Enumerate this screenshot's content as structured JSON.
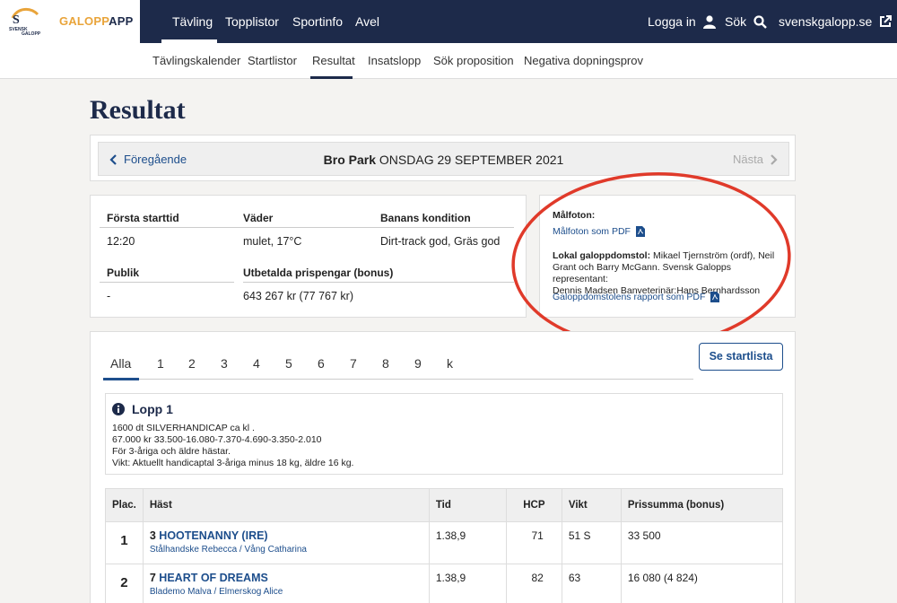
{
  "brand": {
    "prefix": "GALOPP",
    "suffix": "APP",
    "mark_text": "SVENSK GALOPP",
    "accent": "#e9a43a",
    "navy": "#1d2a4a"
  },
  "topnav": {
    "items": [
      "Tävling",
      "Topplistor",
      "Sportinfo",
      "Avel"
    ],
    "login": "Logga in",
    "search": "Sök",
    "external": "svenskgalopp.se"
  },
  "subnav": {
    "items": [
      "Tävlingskalender",
      "Startlistor",
      "Resultat",
      "Insatslopp",
      "Sök proposition",
      "Negativa dopningsprov"
    ]
  },
  "page": {
    "title": "Resultat"
  },
  "datenav": {
    "prev": "Föregående",
    "next": "Nästa",
    "track": "Bro Park",
    "date": "ONSDAG 29 SEPTEMBER 2021"
  },
  "info": {
    "first_start_label": "Första starttid",
    "first_start": "12:20",
    "weather_label": "Väder",
    "weather": "mulet, 17°C",
    "track_cond_label": "Banans kondition",
    "track_cond": "Dirt-track god, Gräs god",
    "audience_label": "Publik",
    "audience": "-",
    "prize_label": "Utbetalda prispengar (bonus)",
    "prize": "643 267 kr (77 767 kr)"
  },
  "side": {
    "photo_label": "Målfoton:",
    "photo_link": "Målfoton som PDF",
    "stewards_label": "Lokal galoppdomstol:",
    "stewards_lines": [
      "Mikael Tjernström (ordf), Neil",
      "Grant och Barry McGann. Svensk Galopps representant:",
      "Dennis Madsen Banveterinär:Hans Bernhardsson"
    ],
    "report_link": "Galoppdomstolens rapport som PDF"
  },
  "races": {
    "tabs": [
      "Alla",
      "1",
      "2",
      "3",
      "4",
      "5",
      "6",
      "7",
      "8",
      "9",
      "k"
    ],
    "startlist_button": "Se startlista",
    "race_title": "Lopp 1",
    "race_desc": [
      "1600 dt SILVERHANDICAP ca kl .",
      "67.000 kr 33.500-16.080-7.370-4.690-3.350-2.010",
      "För 3-åriga och äldre hästar.",
      "Vikt: Aktuellt handicaptal 3-åriga minus 18 kg, äldre 16 kg."
    ],
    "columns": [
      "Plac.",
      "Häst",
      "Tid",
      "HCP",
      "Vikt",
      "Prissumma (bonus)"
    ],
    "rows": [
      {
        "place": "1",
        "no": "3",
        "horse": "HOOTENANNY (IRE)",
        "people": "Stålhandske Rebecca / Vång Catharina",
        "time": "1.38,9",
        "hcp": "71",
        "weight": "51 S",
        "prize": "33 500"
      },
      {
        "place": "2",
        "no": "7",
        "horse": "HEART OF DREAMS",
        "people": "Blademo Malva / Elmerskog Alice",
        "time": "1.38,9",
        "hcp": "82",
        "weight": "63",
        "prize": "16 080 (4 824)"
      }
    ]
  },
  "annotation_color": "#e03a2a"
}
